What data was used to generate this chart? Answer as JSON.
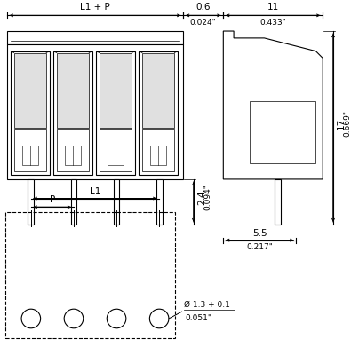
{
  "bg_color": "#ffffff",
  "line_color": "#000000",
  "font_size": 6.5,
  "dims": {
    "L1_P_label": "L1 + P",
    "dim_06": "0.6",
    "dim_06_inch": "0.024\"",
    "dim_11": "11",
    "dim_11_inch": "0.433\"",
    "dim_24": "2.4",
    "dim_24_inch": "0.094\"",
    "dim_17": "17",
    "dim_17_inch": "0.669\"",
    "dim_55": "5.5",
    "dim_55_inch": "0.217\"",
    "dim_hole": "Ø 1.3 + 0.1",
    "dim_hole_inch": "0.051\"",
    "L1_label": "L1",
    "P_label": "P"
  }
}
